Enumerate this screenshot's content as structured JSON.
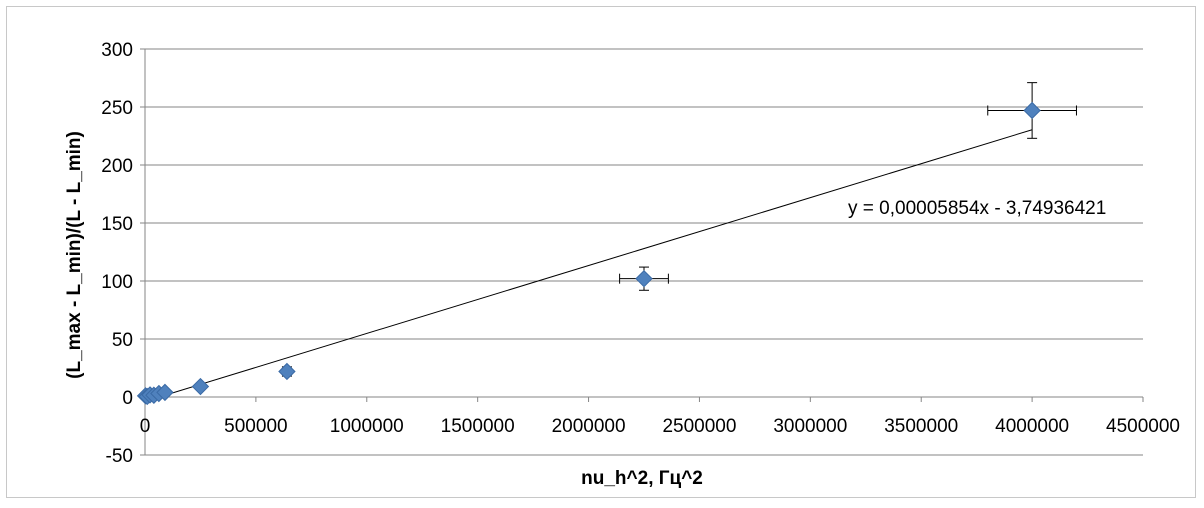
{
  "chart_data": {
    "type": "scatter",
    "title": "",
    "xlabel": "nu_h^2, Гц^2",
    "ylabel": "(L_max - L_min)/(L - L_min)",
    "xlim": [
      0,
      4500000
    ],
    "ylim": [
      -50,
      300
    ],
    "grid": {
      "x": false,
      "y": true
    },
    "legend": "none",
    "x_ticks": [
      0,
      500000,
      1000000,
      1500000,
      2000000,
      2500000,
      3000000,
      3500000,
      4000000,
      4500000
    ],
    "x_tick_labels": [
      "0",
      "500000",
      "1000000",
      "1500000",
      "2000000",
      "2500000",
      "3000000",
      "3500000",
      "4000000",
      "4500000"
    ],
    "y_ticks": [
      -50,
      0,
      50,
      100,
      150,
      200,
      250,
      300
    ],
    "y_tick_labels": [
      "-50",
      "0",
      "50",
      "100",
      "150",
      "200",
      "250",
      "300"
    ],
    "series": [
      {
        "color": "#4f81bd",
        "marker": "diamond",
        "points": [
          {
            "x": 2500,
            "y": 1,
            "xerr": 0,
            "yerr": 0
          },
          {
            "x": 10000,
            "y": 0.5,
            "xerr": 0,
            "yerr": 0
          },
          {
            "x": 22500,
            "y": 1.8,
            "xerr": 0,
            "yerr": 0
          },
          {
            "x": 40000,
            "y": 1.5,
            "xerr": 0,
            "yerr": 0
          },
          {
            "x": 62500,
            "y": 3,
            "xerr": 0,
            "yerr": 0
          },
          {
            "x": 90000,
            "y": 4,
            "xerr": 0,
            "yerr": 0
          },
          {
            "x": 250000,
            "y": 9,
            "xerr": 0,
            "yerr": 0
          },
          {
            "x": 640000,
            "y": 22,
            "xerr": 0,
            "yerr": 4
          },
          {
            "x": 2250000,
            "y": 102,
            "xerr": 110000,
            "yerr": 10
          },
          {
            "x": 4000000,
            "y": 247,
            "xerr": 200000,
            "yerr": 24
          }
        ]
      }
    ],
    "trendline": {
      "type": "linear",
      "slope": 5.854e-05,
      "intercept": -3.74936421,
      "x_range": [
        0,
        4000000
      ],
      "equation_label": "y = 0,00005854x - 3,74936421",
      "color": "#000000"
    },
    "colors": {
      "gridline": "#868686",
      "axis": "#868686",
      "marker": "#4f81bd"
    }
  }
}
